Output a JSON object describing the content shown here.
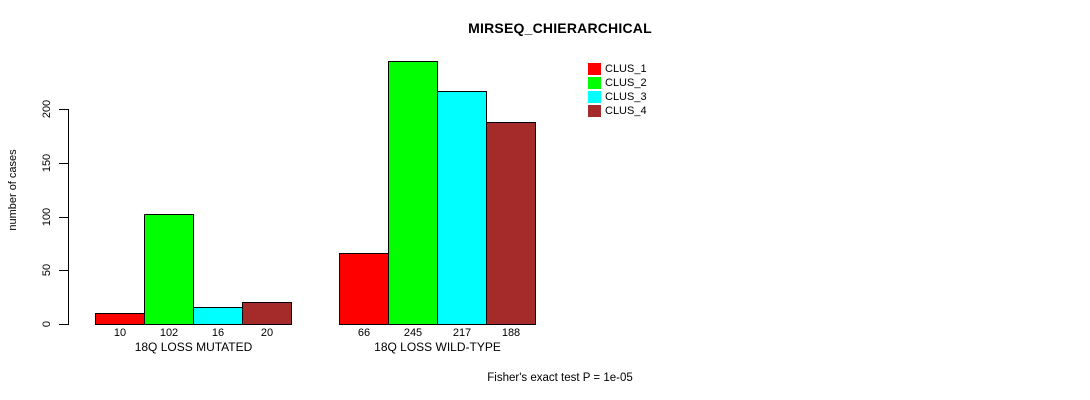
{
  "chart": {
    "title": "MIRSEQ_CHIERARCHICAL",
    "ylabel": "number of cases",
    "annotation": "Fisher's exact test P = 1e-05"
  },
  "legend": {
    "items": [
      {
        "label": "CLUS_1",
        "color": "#FF0000"
      },
      {
        "label": "CLUS_2",
        "color": "#00FF00"
      },
      {
        "label": "CLUS_3",
        "color": "#00FFFF"
      },
      {
        "label": "CLUS_4",
        "color": "#A52A2A"
      }
    ]
  },
  "chart_data": {
    "type": "bar",
    "title": "MIRSEQ_CHIERARCHICAL",
    "xlabel": "",
    "ylabel": "number of cases",
    "categories": [
      "18Q LOSS MUTATED",
      "18Q LOSS WILD-TYPE"
    ],
    "series": [
      {
        "name": "CLUS_1",
        "color": "#FF0000",
        "values": [
          10,
          66
        ]
      },
      {
        "name": "CLUS_2",
        "color": "#00FF00",
        "values": [
          102,
          245
        ]
      },
      {
        "name": "CLUS_3",
        "color": "#00FFFF",
        "values": [
          16,
          217
        ]
      },
      {
        "name": "CLUS_4",
        "color": "#A52A2A",
        "values": [
          20,
          188
        ]
      }
    ],
    "yticks": [
      0,
      50,
      100,
      150,
      200
    ],
    "ylim": [
      0,
      250
    ],
    "grid": false,
    "bar_value_labels_shown": true,
    "legend_position": "top-right",
    "annotation": "Fisher's exact test P = 1e-05"
  }
}
